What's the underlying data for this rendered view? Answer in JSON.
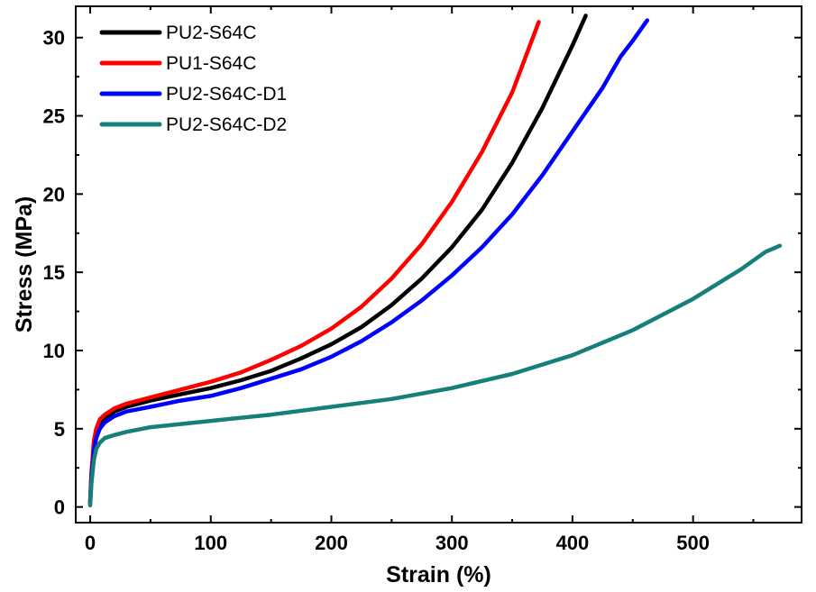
{
  "chart_data": {
    "type": "line",
    "title": "",
    "xlabel": "Strain (%)",
    "ylabel": "Stress (MPa)",
    "xlim": [
      -12,
      590
    ],
    "ylim": [
      -1,
      32
    ],
    "xticks": [
      0,
      100,
      200,
      300,
      400,
      500
    ],
    "yticks": [
      0,
      5,
      10,
      15,
      20,
      25,
      30
    ],
    "grid": false,
    "legend_position": "top-left",
    "series": [
      {
        "name": "PU2-S64C",
        "color": "#000000",
        "points": [
          [
            0,
            0.3
          ],
          [
            1,
            2
          ],
          [
            3,
            3.8
          ],
          [
            5,
            4.7
          ],
          [
            8,
            5.3
          ],
          [
            12,
            5.7
          ],
          [
            20,
            6.1
          ],
          [
            30,
            6.4
          ],
          [
            50,
            6.8
          ],
          [
            75,
            7.2
          ],
          [
            100,
            7.6
          ],
          [
            125,
            8.1
          ],
          [
            150,
            8.7
          ],
          [
            175,
            9.5
          ],
          [
            200,
            10.4
          ],
          [
            225,
            11.5
          ],
          [
            250,
            12.9
          ],
          [
            275,
            14.6
          ],
          [
            300,
            16.6
          ],
          [
            325,
            19.0
          ],
          [
            350,
            22.0
          ],
          [
            375,
            25.5
          ],
          [
            400,
            29.5
          ],
          [
            411,
            31.4
          ]
        ]
      },
      {
        "name": "PU1-S64C",
        "color": "#ff0000",
        "points": [
          [
            0,
            0.3
          ],
          [
            1,
            2.2
          ],
          [
            3,
            4.2
          ],
          [
            5,
            5.0
          ],
          [
            8,
            5.6
          ],
          [
            12,
            5.9
          ],
          [
            20,
            6.3
          ],
          [
            30,
            6.6
          ],
          [
            50,
            7.0
          ],
          [
            75,
            7.5
          ],
          [
            100,
            8.0
          ],
          [
            125,
            8.6
          ],
          [
            150,
            9.4
          ],
          [
            175,
            10.3
          ],
          [
            200,
            11.4
          ],
          [
            225,
            12.8
          ],
          [
            250,
            14.6
          ],
          [
            275,
            16.8
          ],
          [
            300,
            19.5
          ],
          [
            325,
            22.7
          ],
          [
            350,
            26.5
          ],
          [
            372,
            31.0
          ]
        ]
      },
      {
        "name": "PU2-S64C-D1",
        "color": "#0000ff",
        "points": [
          [
            0,
            0.2
          ],
          [
            1,
            1.8
          ],
          [
            3,
            3.6
          ],
          [
            5,
            4.4
          ],
          [
            8,
            5.0
          ],
          [
            12,
            5.4
          ],
          [
            20,
            5.8
          ],
          [
            30,
            6.1
          ],
          [
            50,
            6.4
          ],
          [
            75,
            6.8
          ],
          [
            100,
            7.1
          ],
          [
            125,
            7.6
          ],
          [
            150,
            8.2
          ],
          [
            175,
            8.8
          ],
          [
            200,
            9.6
          ],
          [
            225,
            10.6
          ],
          [
            250,
            11.8
          ],
          [
            275,
            13.2
          ],
          [
            300,
            14.8
          ],
          [
            325,
            16.6
          ],
          [
            350,
            18.7
          ],
          [
            375,
            21.2
          ],
          [
            400,
            24.0
          ],
          [
            425,
            26.8
          ],
          [
            437,
            28.4
          ],
          [
            440,
            28.8
          ],
          [
            450,
            29.8
          ],
          [
            462,
            31.1
          ]
        ]
      },
      {
        "name": "PU2-S64C-D2",
        "color": "#157f7a",
        "points": [
          [
            0,
            0.1
          ],
          [
            1,
            1.5
          ],
          [
            3,
            3.0
          ],
          [
            5,
            3.7
          ],
          [
            8,
            4.1
          ],
          [
            12,
            4.4
          ],
          [
            20,
            4.6
          ],
          [
            30,
            4.8
          ],
          [
            50,
            5.1
          ],
          [
            75,
            5.3
          ],
          [
            100,
            5.5
          ],
          [
            150,
            5.9
          ],
          [
            200,
            6.4
          ],
          [
            250,
            6.9
          ],
          [
            300,
            7.6
          ],
          [
            350,
            8.5
          ],
          [
            400,
            9.7
          ],
          [
            450,
            11.3
          ],
          [
            500,
            13.3
          ],
          [
            540,
            15.2
          ],
          [
            560,
            16.3
          ],
          [
            572,
            16.7
          ]
        ]
      }
    ]
  }
}
